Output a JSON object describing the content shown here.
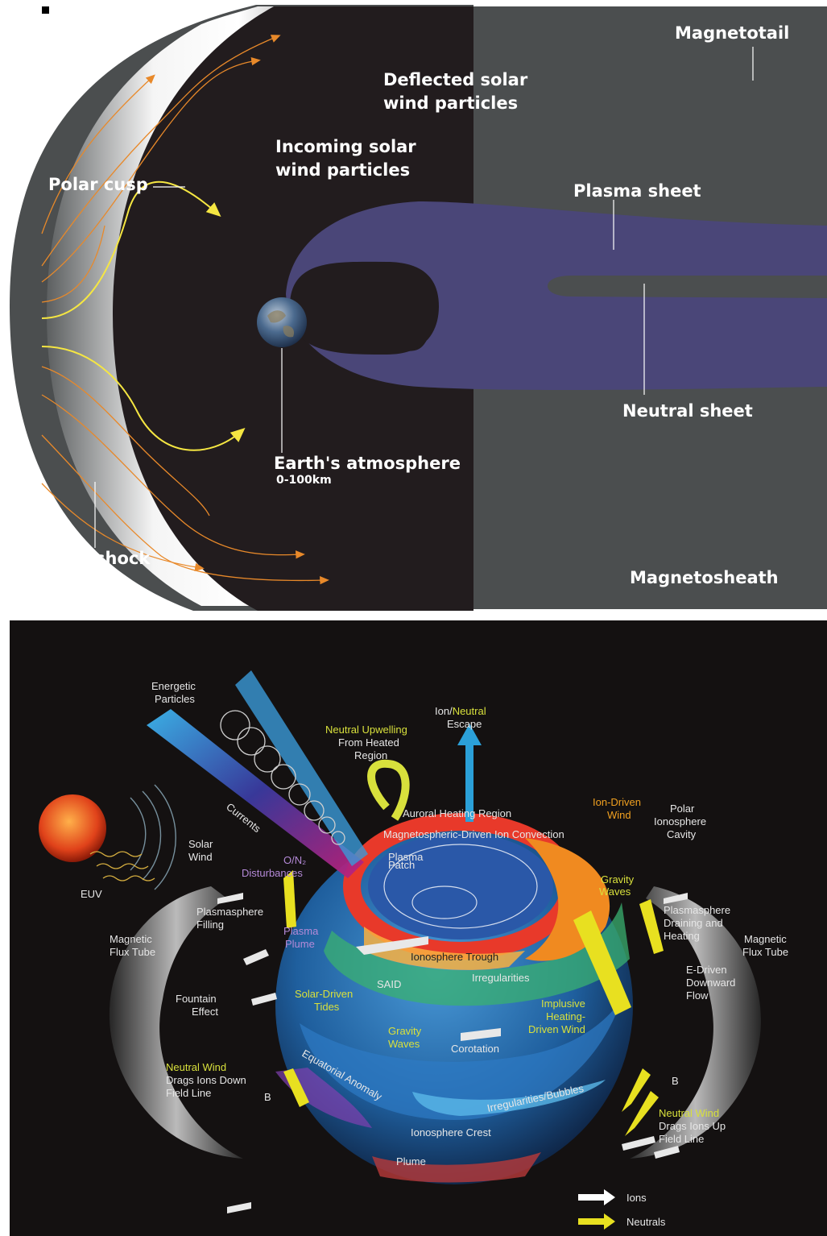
{
  "top_panel": {
    "labels": {
      "magnetotail": "Magnetotail",
      "deflected_1": "Deflected solar",
      "deflected_2": "wind particles",
      "incoming_1": "Incoming solar",
      "incoming_2": "wind particles",
      "polar_cusp": "Polar cusp",
      "plasma_sheet": "Plasma sheet",
      "neutral_sheet": "Neutral sheet",
      "atmosphere": "Earth's atmosphere",
      "atmosphere_range": "0-100km",
      "bow_shock": "shock",
      "magnetosheath": "Magnetosheath"
    },
    "colors": {
      "sheath": "#4b4e4f",
      "dark": "#221c1e",
      "plasma": "#4a4678",
      "particles_orange": "#e8892a",
      "particles_yellow": "#f5e642"
    }
  },
  "bottom_panel": {
    "labels": {
      "energetic_1": "Energetic",
      "energetic_2": "Particles",
      "currents": "Currents",
      "solar_wind_1": "Solar",
      "solar_wind_2": "Wind",
      "euv": "EUV",
      "o_n2_1": "O/N₂",
      "o_n2_2": "Disturbances",
      "upwelling_1": "Neutral Upwelling",
      "upwelling_2": "From Heated",
      "upwelling_3": "Region",
      "escape_1a": "Ion/",
      "escape_1b": "Neutral",
      "escape_2": "Escape",
      "auroral": "Auroral Heating Region",
      "convection": "Magnetospheric-Driven Ion Convection",
      "plasma_patch_1": "Plasma",
      "plasma_patch_2": "Patch",
      "ion_wind_1": "Ion-Driven",
      "ion_wind_2": "Wind",
      "polar_cavity_1": "Polar",
      "polar_cavity_2": "Ionosphere",
      "polar_cavity_3": "Cavity",
      "gravity_waves_r_1": "Gravity",
      "gravity_waves_r_2": "Waves",
      "ps_filling_1": "Plasmasphere",
      "ps_filling_2": "Filling",
      "flux_tube_1": "Magnetic",
      "flux_tube_2": "Flux Tube",
      "plasma_plume_1": "Plasma",
      "plasma_plume_2": "Plume",
      "trough": "Ionosphere Trough",
      "said": "SAID",
      "irregularities": "Irregularities",
      "ps_draining_1": "Plasmasphere",
      "ps_draining_2": "Draining and",
      "ps_draining_3": "Heating",
      "fountain_1": "Fountain",
      "fountain_2": "Effect",
      "tides_1": "Solar-Driven",
      "tides_2": "Tides",
      "edriven_1": "E-Driven",
      "edriven_2": "Downward",
      "edriven_3": "Flow",
      "impulsive_1": "Implusive",
      "impulsive_2": "Heating-",
      "impulsive_3": "Driven Wind",
      "gravity_waves_c_1": "Gravity",
      "gravity_waves_c_2": "Waves",
      "corotation": "Corotation",
      "nw_down_1": "Neutral Wind",
      "nw_down_2": "Drags Ions Down",
      "nw_down_3": "Field Line",
      "b_field": "B",
      "eq_anomaly": "Equatorial Anomaly",
      "irr_bubbles": "Irregularities/Bubbles",
      "crest": "Ionosphere Crest",
      "plume": "Plume",
      "nw_up_1": "Neutral Wind",
      "nw_up_2": "Drags Ions Up",
      "nw_up_3": "Field Line",
      "legend_ions": "Ions",
      "legend_neutrals": "Neutrals"
    }
  }
}
